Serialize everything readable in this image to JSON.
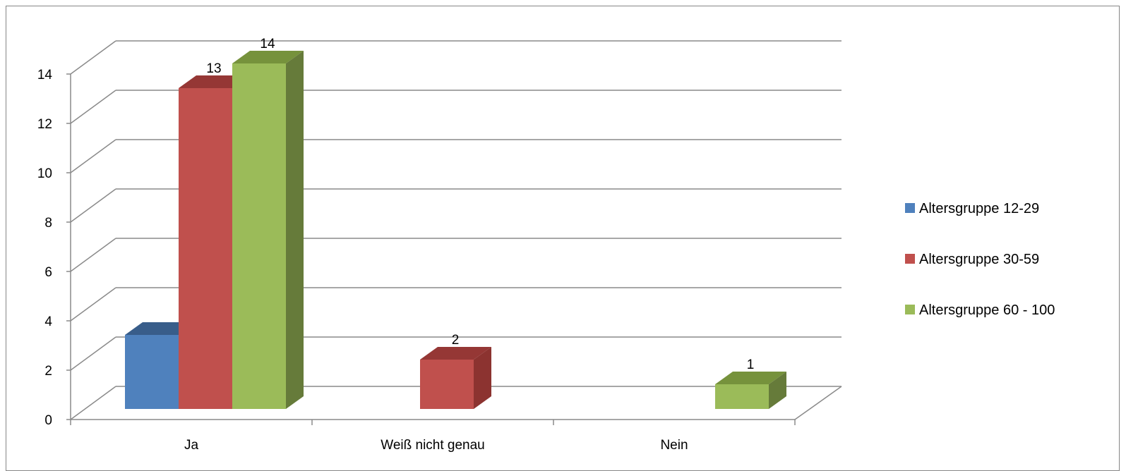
{
  "chart_data": {
    "type": "bar",
    "style": "3d-clustered-column",
    "categories": [
      "Ja",
      "Weiß nicht genau",
      "Nein"
    ],
    "series": [
      {
        "name": "Altersgruppe 12-29",
        "values": [
          3,
          0,
          0
        ],
        "color": "#4F81BD",
        "side_color": "#3A6291",
        "top_color": "#385D8A"
      },
      {
        "name": "Altersgruppe 30-59",
        "values": [
          13,
          2,
          0
        ],
        "color": "#C0504D",
        "side_color": "#8C3330",
        "top_color": "#953735"
      },
      {
        "name": "Altersgruppe 60 - 100",
        "values": [
          14,
          0,
          1
        ],
        "color": "#9BBB59",
        "side_color": "#667B3A",
        "top_color": "#76923C"
      }
    ],
    "data_labels": [
      {
        "series": 1,
        "category": 0,
        "text": "13"
      },
      {
        "series": 2,
        "category": 0,
        "text": "14"
      },
      {
        "series": 1,
        "category": 1,
        "text": "2"
      },
      {
        "series": 2,
        "category": 2,
        "text": "1"
      }
    ],
    "ylim": [
      0,
      14
    ],
    "yticks": [
      "0",
      "2",
      "4",
      "6",
      "8",
      "10",
      "12",
      "14"
    ],
    "grid": true,
    "legend_position": "right",
    "title": "",
    "xlabel": "",
    "ylabel": ""
  }
}
